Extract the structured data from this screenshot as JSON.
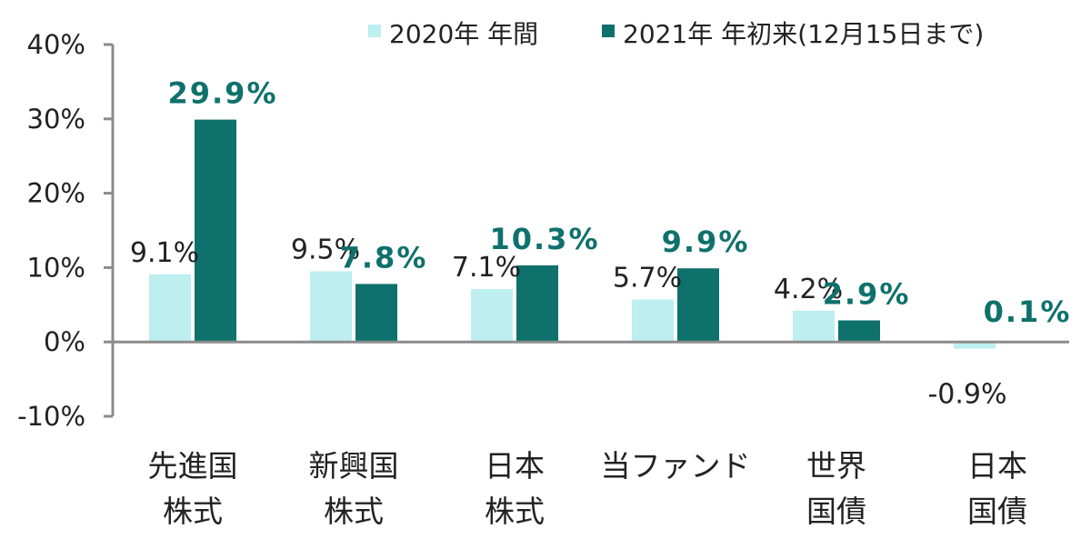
{
  "colors": {
    "series_2020": "#bdeef0",
    "series_2021": "#0f716c",
    "axis": "#8c8c8c",
    "label_2021": "#0f716c"
  },
  "chart_data": {
    "type": "bar",
    "categories": [
      [
        "先進国",
        "株式"
      ],
      [
        "新興国",
        "株式"
      ],
      [
        "日本",
        "株式"
      ],
      [
        "当ファンド"
      ],
      [
        "世界",
        "国債"
      ],
      [
        "日本",
        "国債"
      ]
    ],
    "series": [
      {
        "name": "2020年 年間",
        "values": [
          9.1,
          9.5,
          7.1,
          5.7,
          4.2,
          -0.9
        ],
        "labels": [
          "9.1%",
          "9.5%",
          "7.1%",
          "5.7%",
          "4.2%",
          "-0.9%"
        ]
      },
      {
        "name": "2021年 年初来(12月15日まで)",
        "values": [
          29.9,
          7.8,
          10.3,
          9.9,
          2.9,
          0.1
        ],
        "labels": [
          "29.9%",
          "7.8%",
          "10.3%",
          "9.9%",
          "2.9%",
          "0.1%"
        ]
      }
    ],
    "y_ticks": [
      40,
      30,
      20,
      10,
      0,
      -10
    ],
    "y_tick_labels": [
      "40%",
      "30%",
      "20%",
      "10%",
      "0%",
      "-10%"
    ],
    "ylim": [
      -10,
      40
    ],
    "unit": "%",
    "legend_position": "top-right",
    "grid": false,
    "title": "",
    "xlabel": "",
    "ylabel": ""
  }
}
